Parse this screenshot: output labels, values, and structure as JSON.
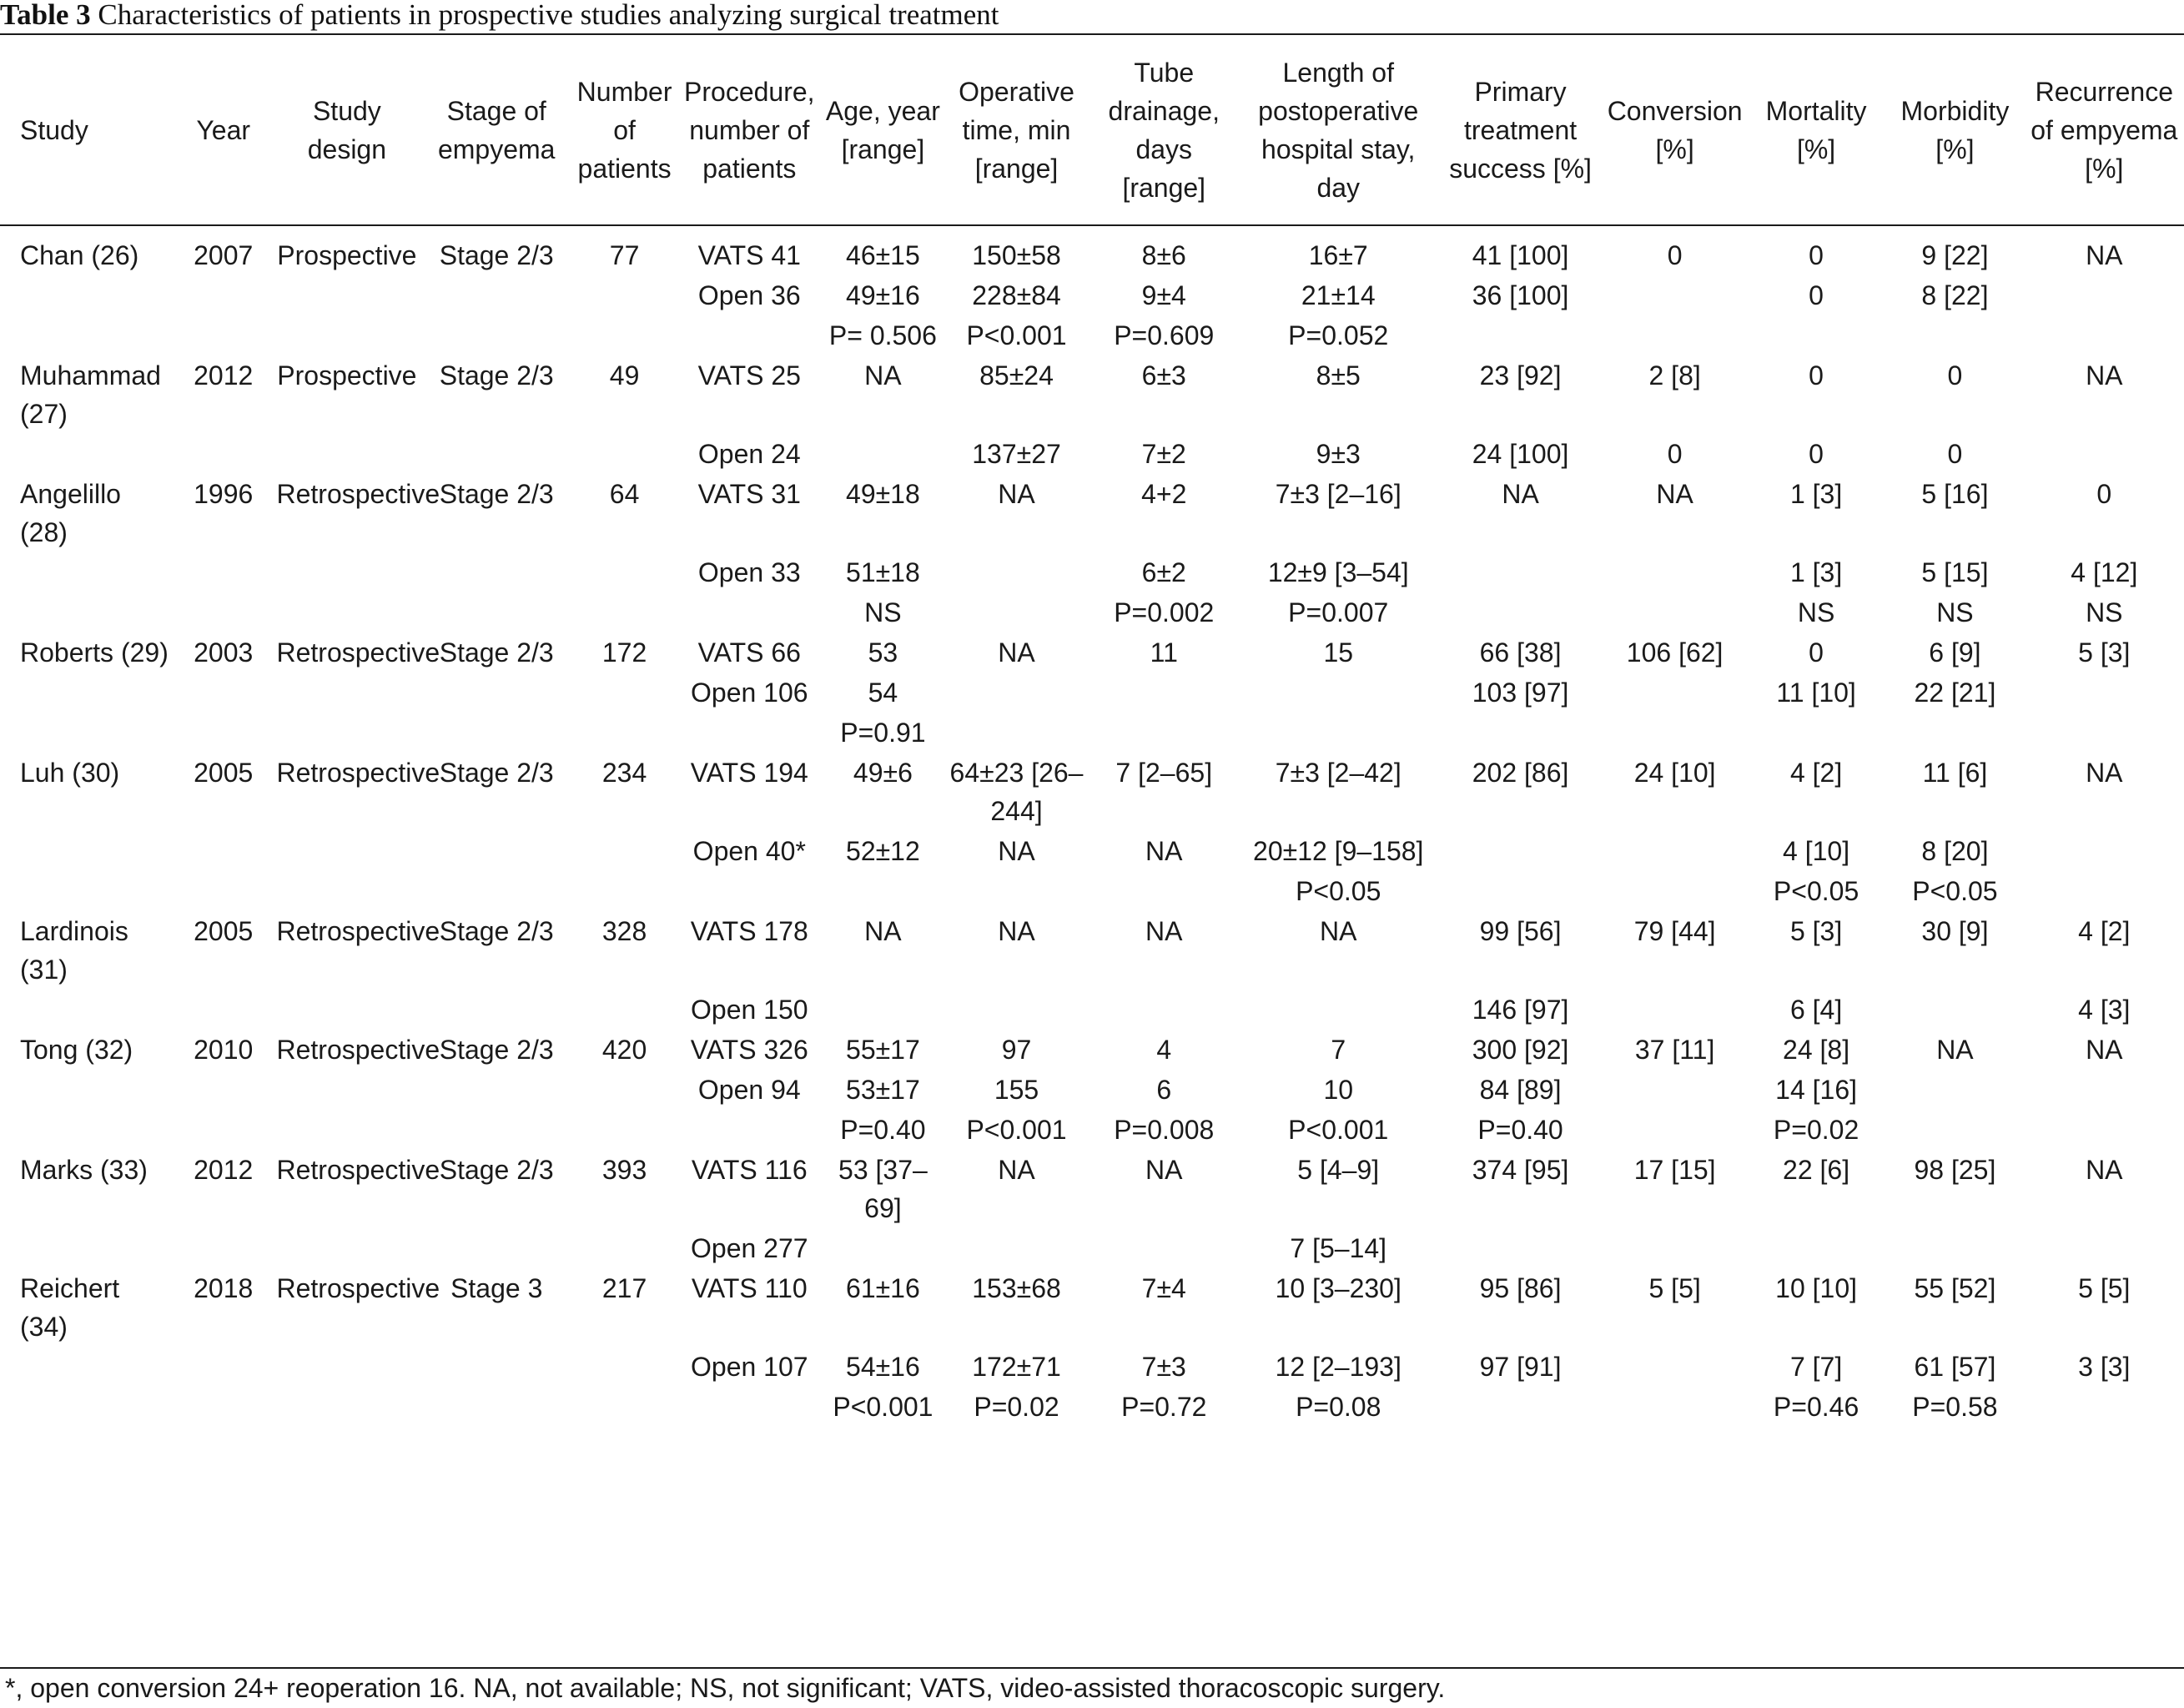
{
  "caption": {
    "label": "Table 3",
    "title": "Characteristics of patients in prospective studies analyzing surgical treatment"
  },
  "columns": [
    "Study",
    "Year",
    "Study design",
    "Stage of empyema",
    "Number of patients",
    "Procedure, number of patients",
    "Age, year [range]",
    "Operative time, min [range]",
    "Tube drainage, days [range]",
    "Length of postoperative hospital stay, day",
    "Primary treatment success [%]",
    "Conversion [%]",
    "Mortality [%]",
    "Morbidity [%]",
    "Recurrence of empyema [%]"
  ],
  "rows": [
    [
      "Chan (26)",
      "2007",
      "Prospective",
      "Stage 2/3",
      "77",
      "VATS 41",
      "46±15",
      "150±58",
      "8±6",
      "16±7",
      "41 [100]",
      "0",
      "0",
      "9 [22]",
      "NA"
    ],
    [
      "",
      "",
      "",
      "",
      "",
      "Open 36",
      "49±16",
      "228±84",
      "9±4",
      "21±14",
      "36 [100]",
      "",
      "0",
      "8 [22]",
      ""
    ],
    [
      "",
      "",
      "",
      "",
      "",
      "",
      "P= 0.506",
      "P<0.001",
      "P=0.609",
      "P=0.052",
      "",
      "",
      "",
      "",
      ""
    ],
    [
      "Muhammad (27)",
      "2012",
      "Prospective",
      "Stage 2/3",
      "49",
      "VATS 25",
      "NA",
      "85±24",
      "6±3",
      "8±5",
      "23 [92]",
      "2 [8]",
      "0",
      "0",
      "NA"
    ],
    [
      "",
      "",
      "",
      "",
      "",
      "Open 24",
      "",
      "137±27",
      "7±2",
      "9±3",
      "24 [100]",
      "0",
      "0",
      "0",
      ""
    ],
    [
      "Angelillo (28)",
      "1996",
      "Retrospective",
      "Stage 2/3",
      "64",
      "VATS 31",
      "49±18",
      "NA",
      "4+2",
      "7±3 [2–16]",
      "NA",
      "NA",
      "1 [3]",
      "5 [16]",
      "0"
    ],
    [
      "",
      "",
      "",
      "",
      "",
      "Open 33",
      "51±18",
      "",
      "6±2",
      "12±9 [3–54]",
      "",
      "",
      "1 [3]",
      "5 [15]",
      "4 [12]"
    ],
    [
      "",
      "",
      "",
      "",
      "",
      "",
      "NS",
      "",
      "P=0.002",
      "P=0.007",
      "",
      "",
      "NS",
      "NS",
      "NS"
    ],
    [
      "Roberts (29)",
      "2003",
      "Retrospective",
      "Stage 2/3",
      "172",
      "VATS 66",
      "53",
      "NA",
      "11",
      "15",
      "66 [38]",
      "106 [62]",
      "0",
      "6 [9]",
      "5 [3]"
    ],
    [
      "",
      "",
      "",
      "",
      "",
      "Open 106",
      "54",
      "",
      "",
      "",
      "103 [97]",
      "",
      "11 [10]",
      "22 [21]",
      ""
    ],
    [
      "",
      "",
      "",
      "",
      "",
      "",
      "P=0.91",
      "",
      "",
      "",
      "",
      "",
      "",
      "",
      ""
    ],
    [
      "Luh (30)",
      "2005",
      "Retrospective",
      "Stage 2/3",
      "234",
      "VATS 194",
      "49±6",
      "64±23 [26–244]",
      "7 [2–65]",
      "7±3 [2–42]",
      "202 [86]",
      "24 [10]",
      "4 [2]",
      "11 [6]",
      "NA"
    ],
    [
      "",
      "",
      "",
      "",
      "",
      "Open 40*",
      "52±12",
      "NA",
      "NA",
      "20±12 [9–158]",
      "",
      "",
      "4 [10]",
      "8 [20]",
      ""
    ],
    [
      "",
      "",
      "",
      "",
      "",
      "",
      "",
      "",
      "",
      "P<0.05",
      "",
      "",
      "P<0.05",
      "P<0.05",
      ""
    ],
    [
      "Lardinois (31)",
      "2005",
      "Retrospective",
      "Stage 2/3",
      "328",
      "VATS 178",
      "NA",
      "NA",
      "NA",
      "NA",
      "99 [56]",
      "79 [44]",
      "5 [3]",
      "30 [9]",
      "4 [2]"
    ],
    [
      "",
      "",
      "",
      "",
      "",
      "Open 150",
      "",
      "",
      "",
      "",
      "146 [97]",
      "",
      "6 [4]",
      "",
      "4 [3]"
    ],
    [
      "Tong (32)",
      "2010",
      "Retrospective",
      "Stage 2/3",
      "420",
      "VATS 326",
      "55±17",
      "97",
      "4",
      "7",
      "300 [92]",
      "37 [11]",
      "24 [8]",
      "NA",
      "NA"
    ],
    [
      "",
      "",
      "",
      "",
      "",
      "Open 94",
      "53±17",
      "155",
      "6",
      "10",
      "84 [89]",
      "",
      "14 [16]",
      "",
      ""
    ],
    [
      "",
      "",
      "",
      "",
      "",
      "",
      "P=0.40",
      "P<0.001",
      "P=0.008",
      "P<0.001",
      "P=0.40",
      "",
      "P=0.02",
      "",
      ""
    ],
    [
      "Marks (33)",
      "2012",
      "Retrospective",
      "Stage 2/3",
      "393",
      "VATS 116",
      "53 [37–69]",
      "NA",
      "NA",
      "5 [4–9]",
      "374 [95]",
      "17 [15]",
      "22 [6]",
      "98 [25]",
      "NA"
    ],
    [
      "",
      "",
      "",
      "",
      "",
      "Open 277",
      "",
      "",
      "",
      "7 [5–14]",
      "",
      "",
      "",
      "",
      ""
    ],
    [
      "Reichert (34)",
      "2018",
      "Retrospective",
      "Stage 3",
      "217",
      "VATS 110",
      "61±16",
      "153±68",
      "7±4",
      "10 [3–230]",
      "95 [86]",
      "5 [5]",
      "10 [10]",
      "55 [52]",
      "5 [5]"
    ],
    [
      "",
      "",
      "",
      "",
      "",
      "Open 107",
      "54±16",
      "172±71",
      "7±3",
      "12 [2–193]",
      "97 [91]",
      "",
      "7 [7]",
      "61 [57]",
      "3 [3]"
    ],
    [
      "",
      "",
      "",
      "",
      "",
      "",
      "P<0.001",
      "P=0.02",
      "P=0.72",
      "P=0.08",
      "",
      "",
      "P=0.46",
      "P=0.58",
      ""
    ]
  ],
  "footnote": "*, open conversion 24+ reoperation 16. NA, not available; NS, not significant; VATS, video-assisted thoracoscopic surgery."
}
